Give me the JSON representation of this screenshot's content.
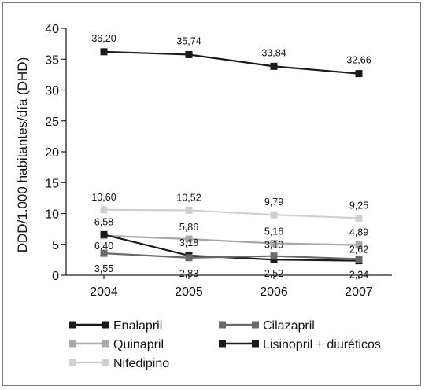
{
  "chart_data": {
    "type": "line",
    "xlabel": "",
    "ylabel": "DDD/1.000 habitantes/día (DHD)",
    "x": [
      "2004",
      "2005",
      "2006",
      "2007"
    ],
    "ylim": [
      0,
      40
    ],
    "yticks": [
      "0",
      "5",
      "10",
      "15",
      "20",
      "25",
      "30",
      "35",
      "40"
    ],
    "grid": false,
    "legend_placement": "bottom",
    "series": [
      {
        "name": "Lisinopril + diuréticos",
        "color": "#1a1a1a",
        "values": [
          36.2,
          35.74,
          33.84,
          32.66
        ],
        "labels": [
          "36,20",
          "35,74",
          "33,84",
          "32,66"
        ]
      },
      {
        "name": "Nifedipino",
        "color": "#d0d0d0",
        "values": [
          10.6,
          10.52,
          9.79,
          9.25
        ],
        "labels": [
          "10,60",
          "10,52",
          "9,79",
          "9,25"
        ]
      },
      {
        "name": "Quinapril",
        "color": "#a8a8a8",
        "values": [
          6.4,
          5.86,
          5.16,
          4.89
        ],
        "labels": [
          "6,40",
          "5,86",
          "5,16",
          "4,89"
        ]
      },
      {
        "name": "Enalapril",
        "color": "#1a1a1a",
        "values": [
          6.58,
          3.18,
          2.52,
          2.34
        ],
        "labels": [
          "6,58",
          "3,18",
          "2,52",
          "2,34"
        ]
      },
      {
        "name": "Cilazapril",
        "color": "#6a6a6a",
        "values": [
          3.55,
          2.83,
          3.1,
          2.62
        ],
        "labels": [
          "3,55",
          "2,83",
          "3,10",
          "2,62"
        ]
      }
    ],
    "legend": [
      "Enalapril",
      "Cilazapril",
      "Quinapril",
      "Lisinopril + diuréticos",
      "Nifedipino"
    ]
  }
}
